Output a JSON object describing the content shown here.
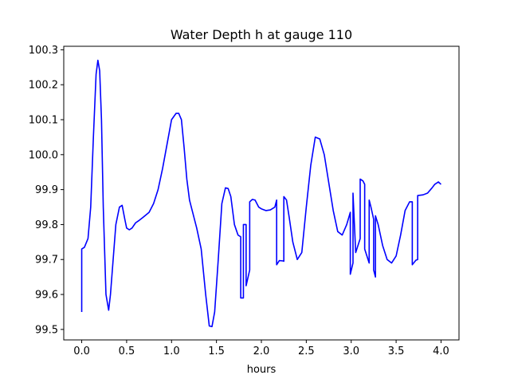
{
  "chart_data": {
    "type": "line",
    "title": "Water Depth h at gauge 110",
    "xlabel": "hours",
    "ylabel": "",
    "xlim": [
      -0.2,
      4.2
    ],
    "ylim": [
      99.47,
      100.31
    ],
    "xticks": [
      0.0,
      0.5,
      1.0,
      1.5,
      2.0,
      2.5,
      3.0,
      3.5,
      4.0
    ],
    "xtick_labels": [
      "0.0",
      "0.5",
      "1.0",
      "1.5",
      "2.0",
      "2.5",
      "3.0",
      "3.5",
      "4.0"
    ],
    "yticks": [
      99.5,
      99.6,
      99.7,
      99.8,
      99.9,
      100.0,
      100.1,
      100.2,
      100.3
    ],
    "ytick_labels": [
      "99.5",
      "99.6",
      "99.7",
      "99.8",
      "99.9",
      "100.0",
      "100.1",
      "100.2",
      "100.3"
    ],
    "grid": false,
    "line_color": "#0000ff",
    "series": [
      {
        "name": "",
        "x": [
          0.0,
          0.0,
          0.03,
          0.07,
          0.1,
          0.13,
          0.16,
          0.18,
          0.2,
          0.22,
          0.24,
          0.27,
          0.3,
          0.32,
          0.35,
          0.38,
          0.42,
          0.45,
          0.48,
          0.5,
          0.53,
          0.56,
          0.6,
          0.64,
          0.68,
          0.75,
          0.8,
          0.85,
          0.9,
          0.95,
          1.0,
          1.05,
          1.08,
          1.11,
          1.14,
          1.17,
          1.2,
          1.23,
          1.28,
          1.33,
          1.38,
          1.42,
          1.45,
          1.48,
          1.52,
          1.56,
          1.6,
          1.63,
          1.66,
          1.7,
          1.74,
          1.77,
          1.77,
          1.8,
          1.8,
          1.83,
          1.83,
          1.87,
          1.87,
          1.9,
          1.93,
          1.97,
          2.0,
          2.05,
          2.1,
          2.15,
          2.17,
          2.17,
          2.2,
          2.24,
          2.25,
          2.25,
          2.28,
          2.31,
          2.35,
          2.4,
          2.45,
          2.5,
          2.55,
          2.6,
          2.65,
          2.7,
          2.75,
          2.8,
          2.85,
          2.9,
          2.95,
          2.99,
          2.99,
          3.02,
          3.02,
          3.02,
          3.05,
          3.1,
          3.1,
          3.13,
          3.15,
          3.15,
          3.2,
          3.2,
          3.22,
          3.25,
          3.25,
          3.27,
          3.27,
          3.3,
          3.35,
          3.4,
          3.45,
          3.5,
          3.55,
          3.6,
          3.65,
          3.68,
          3.68,
          3.72,
          3.74,
          3.74,
          3.8,
          3.85,
          3.9,
          3.93,
          3.97,
          4.0
        ],
        "values": [
          99.55,
          99.73,
          99.735,
          99.76,
          99.85,
          100.05,
          100.23,
          100.27,
          100.24,
          100.1,
          99.85,
          99.6,
          99.555,
          99.6,
          99.7,
          99.8,
          99.85,
          99.855,
          99.815,
          99.79,
          99.785,
          99.79,
          99.805,
          99.812,
          99.82,
          99.835,
          99.86,
          99.9,
          99.96,
          100.03,
          100.1,
          100.118,
          100.118,
          100.1,
          100.02,
          99.93,
          99.87,
          99.84,
          99.79,
          99.73,
          99.6,
          99.51,
          99.508,
          99.55,
          99.7,
          99.86,
          99.905,
          99.903,
          99.88,
          99.8,
          99.77,
          99.765,
          99.59,
          99.59,
          99.8,
          99.8,
          99.625,
          99.67,
          99.865,
          99.872,
          99.87,
          99.85,
          99.845,
          99.84,
          99.842,
          99.85,
          99.87,
          99.685,
          99.697,
          99.696,
          99.695,
          99.88,
          99.87,
          99.82,
          99.75,
          99.7,
          99.72,
          99.85,
          99.97,
          100.05,
          100.045,
          100.0,
          99.92,
          99.84,
          99.78,
          99.77,
          99.8,
          99.835,
          99.658,
          99.69,
          99.88,
          99.89,
          99.72,
          99.76,
          99.93,
          99.925,
          99.915,
          99.73,
          99.69,
          99.87,
          99.85,
          99.815,
          99.67,
          99.65,
          99.825,
          99.8,
          99.74,
          99.7,
          99.69,
          99.71,
          99.77,
          99.84,
          99.865,
          99.865,
          99.685,
          99.698,
          99.7,
          99.883,
          99.885,
          99.89,
          99.905,
          99.915,
          99.922,
          99.915
        ]
      }
    ]
  }
}
